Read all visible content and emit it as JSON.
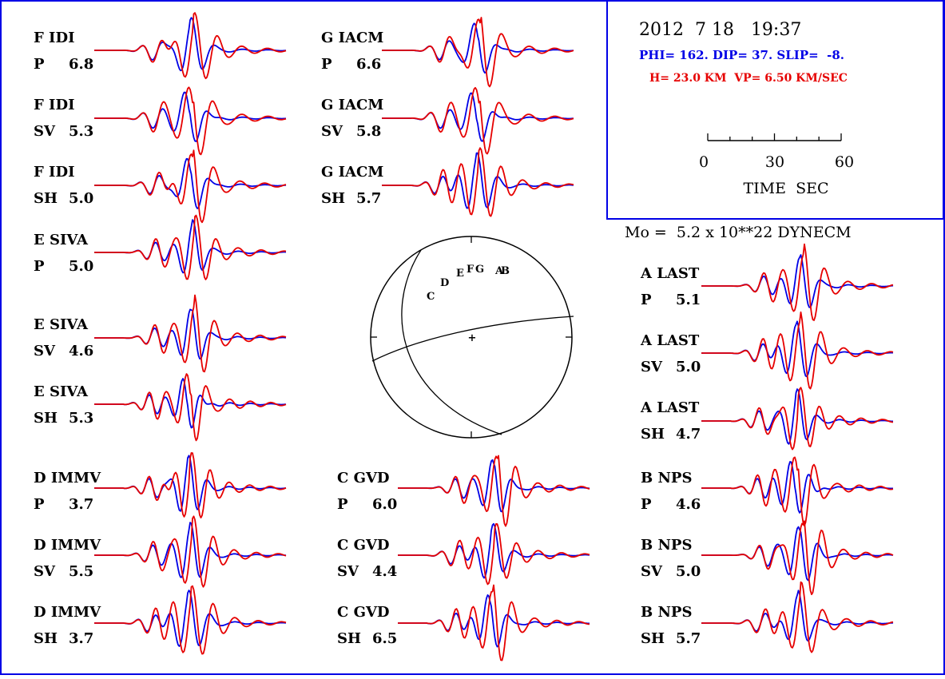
{
  "header": {
    "date": "2012  7 18   19:37",
    "mechanism": "PHI= 162. DIP= 37. SLIP=  -8.",
    "depth_velocity": "H= 23.0 KM  VP= 6.50 KM/SEC",
    "scale_ticks": [
      "0",
      "30",
      "60"
    ],
    "scale_label": "TIME  SEC"
  },
  "moment": "Mo =  5.2 x 10**22 DYNECM",
  "colors": {
    "observed": "#e60000",
    "synthetic": "#0000e6",
    "frame": "#0000e6",
    "ink": "#000000"
  },
  "focal_mechanism": {
    "station_letters": [
      "C",
      "D",
      "E",
      "F",
      "G",
      "A",
      "B"
    ],
    "origin_marker": "+"
  },
  "panels": [
    {
      "station": "F  IDI",
      "phase": "P",
      "amp": "6.8"
    },
    {
      "station": "F  IDI",
      "phase": "SV",
      "amp": "5.3"
    },
    {
      "station": "F  IDI",
      "phase": "SH",
      "amp": "5.0"
    },
    {
      "station": "E  SIVA",
      "phase": "P",
      "amp": "5.0"
    },
    {
      "station": "E  SIVA",
      "phase": "SV",
      "amp": "4.6"
    },
    {
      "station": "E  SIVA",
      "phase": "SH",
      "amp": "5.3"
    },
    {
      "station": "D  IMMV",
      "phase": "P",
      "amp": "3.7"
    },
    {
      "station": "D  IMMV",
      "phase": "SV",
      "amp": "5.5"
    },
    {
      "station": "D  IMMV",
      "phase": "SH",
      "amp": "3.7"
    },
    {
      "station": "G  IACM",
      "phase": "P",
      "amp": "6.6"
    },
    {
      "station": "G  IACM",
      "phase": "SV",
      "amp": "5.8"
    },
    {
      "station": "G  IACM",
      "phase": "SH",
      "amp": "5.7"
    },
    {
      "station": "C  GVD",
      "phase": "P",
      "amp": "6.0"
    },
    {
      "station": "C  GVD",
      "phase": "SV",
      "amp": "4.4"
    },
    {
      "station": "C  GVD",
      "phase": "SH",
      "amp": "6.5"
    },
    {
      "station": "A  LAST",
      "phase": "P",
      "amp": "5.1"
    },
    {
      "station": "A  LAST",
      "phase": "SV",
      "amp": "5.0"
    },
    {
      "station": "A  LAST",
      "phase": "SH",
      "amp": "4.7"
    },
    {
      "station": "B  NPS",
      "phase": "P",
      "amp": "4.6"
    },
    {
      "station": "B  NPS",
      "phase": "SV",
      "amp": "5.0"
    },
    {
      "station": "B  NPS",
      "phase": "SH",
      "amp": "5.7"
    }
  ]
}
